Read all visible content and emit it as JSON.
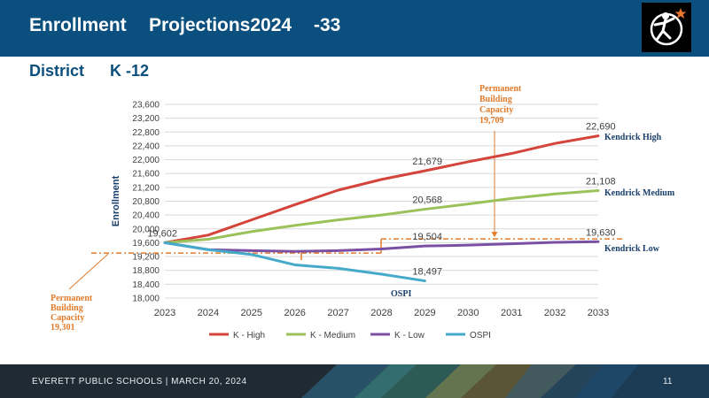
{
  "header": {
    "title_part1": "Enrollment",
    "title_part2": "Projections2024",
    "title_part3": "-33"
  },
  "subtitle": {
    "part1": "District",
    "part2": "K -12"
  },
  "chart_data": {
    "type": "line",
    "ylabel": "Enrollment",
    "xlabel": "",
    "title": "",
    "ylim": [
      18000,
      23600
    ],
    "yticks": [
      18000,
      18400,
      18800,
      19200,
      19600,
      20000,
      20400,
      20800,
      21200,
      21600,
      22000,
      22400,
      22800,
      23200,
      23600
    ],
    "ytick_labels": [
      "18,000",
      "18,400",
      "18,800",
      "19,200",
      "19,600",
      "20,000",
      "20,400",
      "20,800",
      "21,200",
      "21,600",
      "22,000",
      "22,400",
      "22,800",
      "23,200",
      "23,600"
    ],
    "x": [
      2023,
      2024,
      2025,
      2026,
      2027,
      2028,
      2029,
      2030,
      2031,
      2032,
      2033
    ],
    "grid": "horizontal",
    "legend": "bottom",
    "series": [
      {
        "name": "K - High",
        "color": "#d4443a",
        "x": [
          2023,
          2024,
          2025,
          2026,
          2027,
          2028,
          2029,
          2030,
          2031,
          2032,
          2033
        ],
        "values": [
          19602,
          19820,
          20260,
          20700,
          21120,
          21430,
          21679,
          21940,
          22180,
          22470,
          22690
        ]
      },
      {
        "name": "K - Medium",
        "color": "#9bc25a",
        "x": [
          2023,
          2024,
          2025,
          2026,
          2027,
          2028,
          2029,
          2030,
          2031,
          2032,
          2033
        ],
        "values": [
          19602,
          19700,
          19920,
          20100,
          20260,
          20400,
          20568,
          20720,
          20880,
          21010,
          21108
        ]
      },
      {
        "name": "K - Low",
        "color": "#7b4fa3",
        "x": [
          2023,
          2024,
          2025,
          2026,
          2027,
          2028,
          2029,
          2030,
          2031,
          2032,
          2033
        ],
        "values": [
          19602,
          19400,
          19370,
          19350,
          19370,
          19420,
          19504,
          19530,
          19570,
          19610,
          19630
        ]
      },
      {
        "name": "OSPI",
        "color": "#45aac9",
        "x": [
          2023,
          2024,
          2025,
          2026,
          2027,
          2028,
          2029
        ],
        "values": [
          19602,
          19400,
          19260,
          18960,
          18860,
          18690,
          18497
        ]
      }
    ],
    "data_labels": [
      {
        "series": 0,
        "x": 2023,
        "y": 19602,
        "text": "19,602",
        "anchor": "end"
      },
      {
        "series": 0,
        "x": 2029,
        "y": 21679,
        "text": "21,679",
        "anchor": "start"
      },
      {
        "series": 0,
        "x": 2033,
        "y": 22690,
        "text": "22,690",
        "anchor": "start"
      },
      {
        "series": 1,
        "x": 2029,
        "y": 20568,
        "text": "20,568",
        "anchor": "start"
      },
      {
        "series": 1,
        "x": 2033,
        "y": 21108,
        "text": "21,108",
        "anchor": "start"
      },
      {
        "series": 2,
        "x": 2029,
        "y": 19504,
        "text": "19,504",
        "anchor": "start"
      },
      {
        "series": 2,
        "x": 2033,
        "y": 19630,
        "text": "19,630",
        "anchor": "start"
      },
      {
        "series": 3,
        "x": 2029,
        "y": 18497,
        "text": "18,497",
        "anchor": "start"
      }
    ],
    "series_end_labels": [
      {
        "text": "Kendrick   High",
        "series": 0
      },
      {
        "text": "Kendrick   Medium",
        "series": 1
      },
      {
        "text": "Kendrick   Low",
        "series": 2
      }
    ],
    "ospi_label": "OSPI",
    "capacity_current": {
      "label_lines": [
        "Permanent",
        "Building",
        "Capacity",
        "19,301"
      ],
      "value": 19301,
      "color": "#e07b2b"
    },
    "capacity_future": {
      "label_lines": [
        "Permanent",
        "Building",
        "Capacity",
        "19,709"
      ],
      "value": 19709,
      "start_x": 2028,
      "color": "#e07b2b"
    }
  },
  "footer": {
    "text": "EVERETT  PUBLIC  SCHOOLS   |   MARCH  20, 2024",
    "page_number": "11"
  }
}
